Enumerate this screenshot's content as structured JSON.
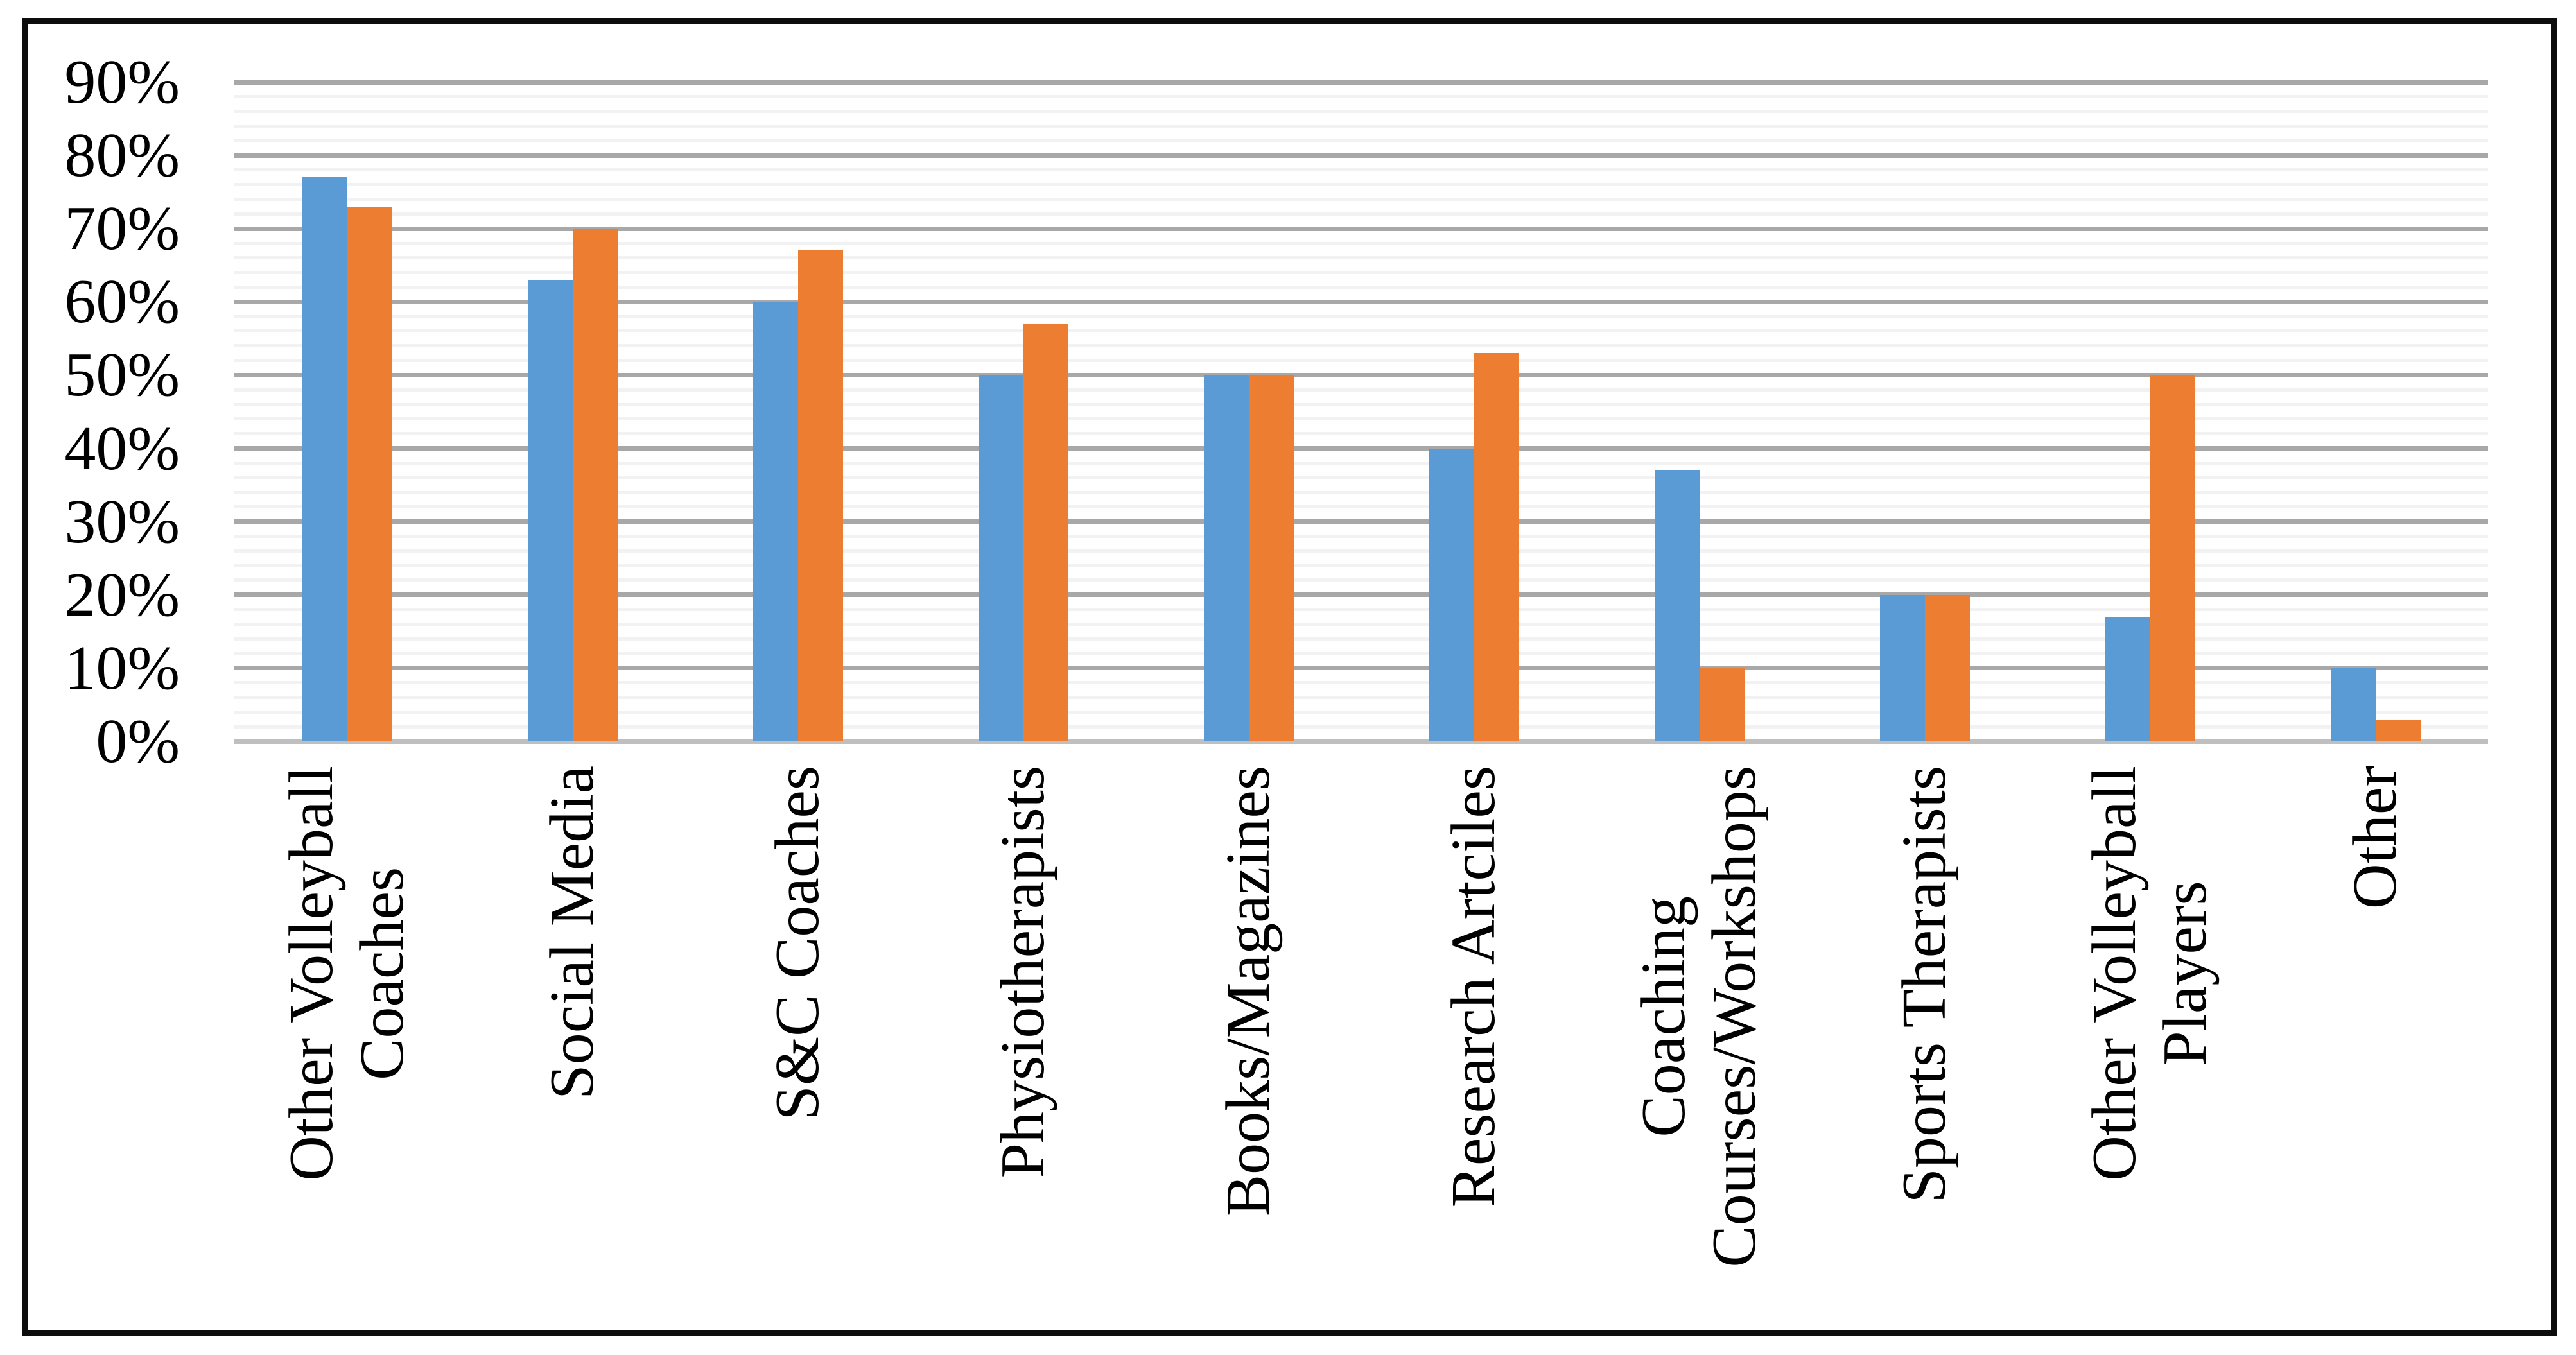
{
  "chart_data": {
    "type": "bar",
    "title": "",
    "xlabel": "",
    "ylabel": "",
    "categories": [
      "Other Volleyball\nCoaches",
      "Social Media",
      "S&C Coaches",
      "Physiotherapists",
      "Books/Magazines",
      "Research Artciles",
      "Coaching\nCourses/Workshops",
      "Sports Therapists",
      "Other Volleyball\nPlayers",
      "Other"
    ],
    "series": [
      {
        "id": "series-blue",
        "color": "#5B9BD5",
        "values": [
          77,
          63,
          60,
          50,
          50,
          40,
          37,
          20,
          17,
          10
        ]
      },
      {
        "id": "series-orange",
        "color": "#ED7D31",
        "values": [
          73,
          70,
          67,
          57,
          50,
          53,
          10,
          20,
          50,
          3
        ]
      }
    ],
    "y_axis": {
      "min": 0,
      "max": 90,
      "major_step": 10,
      "minor_step": 2,
      "tick_labels": [
        "0%",
        "10%",
        "20%",
        "30%",
        "40%",
        "50%",
        "60%",
        "70%",
        "80%",
        "90%"
      ]
    },
    "legend": "none",
    "grid": {
      "major": true,
      "minor": true
    }
  },
  "colors": {
    "series_blue": "#5B9BD5",
    "series_orange": "#ED7D31",
    "major_gridline": "#A8A8A8",
    "minor_gridline": "#F2F2F2",
    "axis_baseline": "#BFBFBF",
    "frame_border": "#0D0D0D",
    "background": "#FFFFFF",
    "text": "#000000"
  }
}
